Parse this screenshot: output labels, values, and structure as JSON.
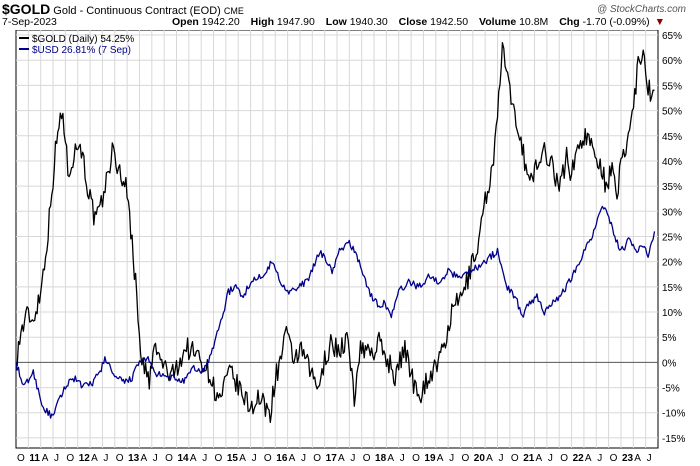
{
  "header": {
    "symbol": "$GOLD",
    "description": "Gold - Continuous Contract (EOD)",
    "exchange": "CME",
    "watermark": "@ StockCharts.com",
    "date": "7-Sep-2023",
    "open_label": "Open",
    "open": "1942.20",
    "high_label": "High",
    "high": "1947.90",
    "low_label": "Low",
    "low": "1940.30",
    "close_label": "Close",
    "close": "1942.50",
    "volume_label": "Volume",
    "volume": "10.8M",
    "chg_label": "Chg",
    "chg": "-1.70 (-0.09%)",
    "chg_icon": "down-triangle-icon",
    "down_color": "#8b0000"
  },
  "chart_data": {
    "type": "line",
    "ylim": [
      -17,
      66
    ],
    "xlim": [
      2010.75,
      2023.75
    ],
    "grid": true,
    "legend_placement": "top-left",
    "y_ticks": [
      -15,
      -10,
      -5,
      0,
      5,
      10,
      15,
      20,
      25,
      30,
      35,
      40,
      45,
      50,
      55,
      60,
      65
    ],
    "y_tick_labels": [
      "-15%",
      "-10%",
      "-5%",
      "0%",
      "5%",
      "10%",
      "15%",
      "20%",
      "25%",
      "30%",
      "35%",
      "40%",
      "45%",
      "50%",
      "55%",
      "60%",
      "65%"
    ],
    "x_ticks": [
      {
        "x": 2010.75,
        "label": "O"
      },
      {
        "x": 2011.0,
        "label": "11"
      },
      {
        "x": 2011.25,
        "label": "A"
      },
      {
        "x": 2011.5,
        "label": "J"
      },
      {
        "x": 2011.75,
        "label": "O"
      },
      {
        "x": 2012.0,
        "label": "12"
      },
      {
        "x": 2012.25,
        "label": "A"
      },
      {
        "x": 2012.5,
        "label": "J"
      },
      {
        "x": 2012.75,
        "label": "O"
      },
      {
        "x": 2013.0,
        "label": "13"
      },
      {
        "x": 2013.25,
        "label": "A"
      },
      {
        "x": 2013.5,
        "label": "J"
      },
      {
        "x": 2013.75,
        "label": "O"
      },
      {
        "x": 2014.0,
        "label": "14"
      },
      {
        "x": 2014.25,
        "label": "A"
      },
      {
        "x": 2014.5,
        "label": "J"
      },
      {
        "x": 2014.75,
        "label": "O"
      },
      {
        "x": 2015.0,
        "label": "15"
      },
      {
        "x": 2015.25,
        "label": "A"
      },
      {
        "x": 2015.5,
        "label": "J"
      },
      {
        "x": 2015.75,
        "label": "O"
      },
      {
        "x": 2016.0,
        "label": "16"
      },
      {
        "x": 2016.25,
        "label": "A"
      },
      {
        "x": 2016.5,
        "label": "J"
      },
      {
        "x": 2016.75,
        "label": "O"
      },
      {
        "x": 2017.0,
        "label": "17"
      },
      {
        "x": 2017.25,
        "label": "A"
      },
      {
        "x": 2017.5,
        "label": "J"
      },
      {
        "x": 2017.75,
        "label": "O"
      },
      {
        "x": 2018.0,
        "label": "18"
      },
      {
        "x": 2018.25,
        "label": "A"
      },
      {
        "x": 2018.5,
        "label": "J"
      },
      {
        "x": 2018.75,
        "label": "O"
      },
      {
        "x": 2019.0,
        "label": "19"
      },
      {
        "x": 2019.25,
        "label": "A"
      },
      {
        "x": 2019.5,
        "label": "J"
      },
      {
        "x": 2019.75,
        "label": "O"
      },
      {
        "x": 2020.0,
        "label": "20"
      },
      {
        "x": 2020.25,
        "label": "A"
      },
      {
        "x": 2020.5,
        "label": "J"
      },
      {
        "x": 2020.75,
        "label": "O"
      },
      {
        "x": 2021.0,
        "label": "21"
      },
      {
        "x": 2021.25,
        "label": "A"
      },
      {
        "x": 2021.5,
        "label": "J"
      },
      {
        "x": 2021.75,
        "label": "O"
      },
      {
        "x": 2022.0,
        "label": "22"
      },
      {
        "x": 2022.25,
        "label": "A"
      },
      {
        "x": 2022.5,
        "label": "J"
      },
      {
        "x": 2022.75,
        "label": "O"
      },
      {
        "x": 2023.0,
        "label": "23"
      },
      {
        "x": 2023.25,
        "label": "A"
      },
      {
        "x": 2023.5,
        "label": "J"
      }
    ],
    "series": [
      {
        "name": "$GOLD (Daily) 54.25%",
        "color": "#000000",
        "x": [
          2010.75,
          2010.85,
          2011.0,
          2011.08,
          2011.25,
          2011.4,
          2011.55,
          2011.62,
          2011.7,
          2011.8,
          2011.95,
          2012.05,
          2012.2,
          2012.35,
          2012.45,
          2012.58,
          2012.7,
          2012.8,
          2012.9,
          2013.0,
          2013.1,
          2013.22,
          2013.3,
          2013.45,
          2013.55,
          2013.7,
          2013.9,
          2014.0,
          2014.2,
          2014.35,
          2014.55,
          2014.7,
          2014.85,
          2015.0,
          2015.1,
          2015.3,
          2015.5,
          2015.65,
          2015.8,
          2015.9,
          2016.0,
          2016.1,
          2016.2,
          2016.35,
          2016.55,
          2016.75,
          2016.92,
          2017.0,
          2017.15,
          2017.3,
          2017.45,
          2017.6,
          2017.7,
          2017.85,
          2018.0,
          2018.1,
          2018.25,
          2018.45,
          2018.6,
          2018.7,
          2018.8,
          2018.95,
          2019.1,
          2019.3,
          2019.42,
          2019.55,
          2019.7,
          2019.85,
          2020.0,
          2020.12,
          2020.2,
          2020.3,
          2020.42,
          2020.5,
          2020.6,
          2020.68,
          2020.8,
          2020.95,
          2021.05,
          2021.18,
          2021.3,
          2021.45,
          2021.6,
          2021.75,
          2021.9,
          2022.0,
          2022.1,
          2022.18,
          2022.3,
          2022.45,
          2022.58,
          2022.7,
          2022.82,
          2022.92,
          2023.0,
          2023.1,
          2023.2,
          2023.28,
          2023.35,
          2023.45,
          2023.55,
          2023.62,
          2023.68
        ],
        "y": [
          0,
          6,
          10,
          8,
          14,
          26,
          42,
          47,
          50,
          38,
          42,
          44,
          35,
          28,
          30,
          36,
          42,
          39,
          37,
          34,
          24,
          10,
          0,
          -4,
          3,
          0,
          -3,
          -1,
          3,
          2,
          0,
          -3,
          -8,
          -4,
          -2,
          -6,
          -9,
          -7,
          -9,
          -10,
          -3,
          0,
          6,
          1,
          2,
          -3,
          -5,
          1,
          4,
          2,
          5,
          -7,
          2,
          3,
          2,
          4,
          1,
          -3,
          3,
          0,
          -4,
          -6,
          -3,
          0,
          3,
          9,
          12,
          15,
          20,
          24,
          30,
          34,
          41,
          48,
          63,
          58,
          50,
          46,
          40,
          36,
          39,
          42,
          40,
          34,
          41,
          37,
          42,
          44,
          45,
          42,
          40,
          35,
          38,
          32,
          40,
          43,
          48,
          53,
          60,
          62,
          55,
          52,
          54
        ]
      },
      {
        "name": "$USD 26.81% (7 Sep)",
        "color": "#00008b",
        "x": [
          2010.75,
          2010.9,
          2011.1,
          2011.3,
          2011.5,
          2011.6,
          2011.8,
          2011.95,
          2012.1,
          2012.3,
          2012.45,
          2012.55,
          2012.75,
          2012.95,
          2013.1,
          2013.25,
          2013.4,
          2013.55,
          2013.75,
          2013.95,
          2014.15,
          2014.35,
          2014.5,
          2014.65,
          2014.8,
          2014.95,
          2015.05,
          2015.2,
          2015.35,
          2015.5,
          2015.7,
          2015.95,
          2016.1,
          2016.3,
          2016.5,
          2016.7,
          2016.9,
          2017.0,
          2017.15,
          2017.3,
          2017.5,
          2017.7,
          2017.9,
          2018.1,
          2018.2,
          2018.35,
          2018.5,
          2018.7,
          2018.9,
          2019.1,
          2019.3,
          2019.5,
          2019.7,
          2019.9,
          2020.1,
          2020.25,
          2020.35,
          2020.5,
          2020.7,
          2020.9,
          2021.0,
          2021.15,
          2021.3,
          2021.45,
          2021.6,
          2021.75,
          2021.9,
          2022.05,
          2022.2,
          2022.35,
          2022.5,
          2022.6,
          2022.7,
          2022.78,
          2022.9,
          2023.05,
          2023.15,
          2023.3,
          2023.45,
          2023.55,
          2023.62,
          2023.68
        ],
        "y": [
          0,
          -5,
          -2,
          -9,
          -11,
          -8,
          -4,
          -3,
          -5,
          -4,
          -2,
          1,
          -3,
          -4,
          -3,
          0,
          1,
          -2,
          -3,
          -3,
          -4,
          -1,
          -2,
          0,
          5,
          10,
          14,
          15,
          13,
          16,
          17,
          20,
          16,
          14,
          15,
          17,
          22,
          21,
          18,
          22,
          24,
          20,
          14,
          11,
          12,
          9,
          14,
          16,
          15,
          17,
          16,
          18,
          17,
          18,
          19,
          20,
          21,
          22,
          15,
          12,
          9,
          12,
          13,
          10,
          12,
          13,
          15,
          18,
          21,
          24,
          27,
          31,
          30,
          28,
          24,
          22,
          25,
          22,
          23,
          21,
          24,
          26
        ]
      }
    ]
  }
}
